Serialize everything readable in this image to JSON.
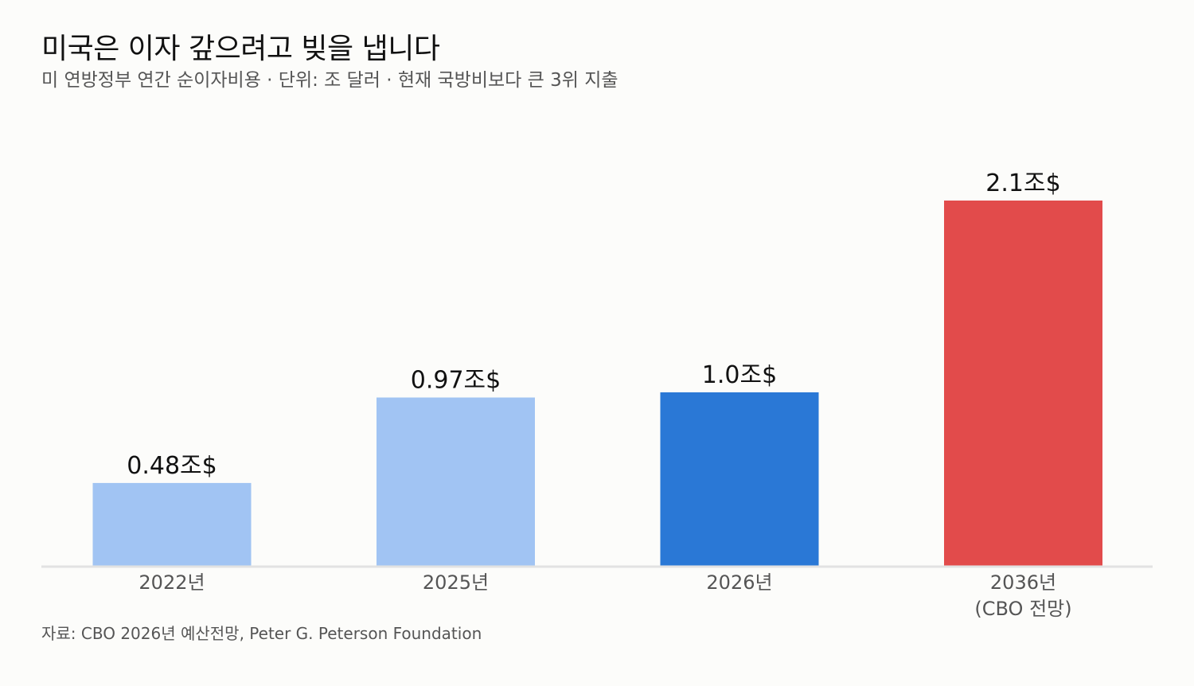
{
  "header": {
    "title": "미국은 이자 갚으려고 빚을 냅니다",
    "subtitle": "미 연방정부 연간 순이자비용 · 단위: 조 달러 · 현재 국방비보다 큰 3위 지출"
  },
  "footer": {
    "source": "자료: CBO 2026년 예산전망, Peter G. Peterson Foundation"
  },
  "chart_data": {
    "type": "bar",
    "title": "미국은 이자 갚으려고 빚을 냅니다",
    "subtitle": "미 연방정부 연간 순이자비용 · 단위: 조 달러 · 현재 국방비보다 큰 3위 지출",
    "xlabel": "",
    "ylabel": "",
    "ylim": [
      0,
      2.1
    ],
    "grid": false,
    "legend": "none",
    "categories": [
      [
        "2022년"
      ],
      [
        "2025년"
      ],
      [
        "2026년"
      ],
      [
        "2036년",
        "(CBO 전망)"
      ]
    ],
    "values": [
      0.48,
      0.97,
      1.0,
      2.1
    ],
    "value_labels": [
      "0.48조$",
      "0.97조$",
      "1.0조$",
      "2.1조$"
    ],
    "colors": [
      "#a1c4f3",
      "#a1c4f3",
      "#2a78d6",
      "#e24b4b"
    ],
    "axis_color": "#e2e2e2",
    "label_color": "#111111",
    "tick_color": "#555555"
  }
}
